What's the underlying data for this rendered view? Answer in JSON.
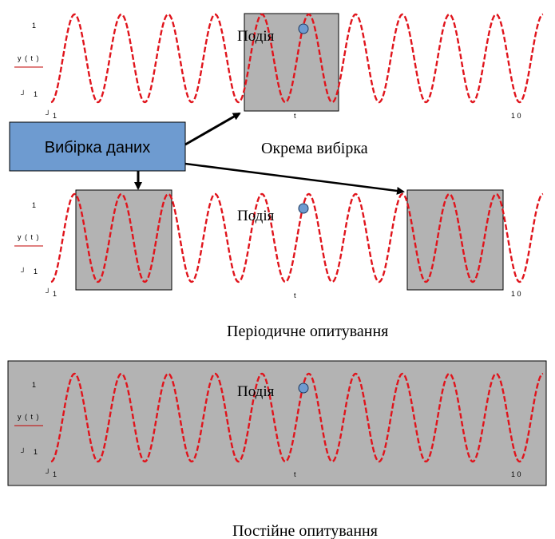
{
  "colors": {
    "wave": "#e0141c",
    "shade": "#b3b3b3",
    "box": "#6e9bd0",
    "event_dot": "#6e9bd0"
  },
  "sampler_box": {
    "label": "Вибірка даних"
  },
  "captions": {
    "single": "Окрема вибірка",
    "periodic": "Періодичне опитування",
    "continuous": "Постійне опитування"
  },
  "plots": [
    {
      "id": "single",
      "ylabel": "y ( t )",
      "y_top": "1",
      "y_bottom": "1",
      "corner": "┘",
      "x_start": "1",
      "x_mid": "t",
      "x_end": "1 0",
      "event": "Подія"
    },
    {
      "id": "periodic",
      "ylabel": "y ( t )",
      "y_top": "1",
      "y_bottom": "1",
      "corner": "┘",
      "x_start": "1",
      "x_mid": "t",
      "x_end": "1 0",
      "event": "Подія"
    },
    {
      "id": "continuous",
      "ylabel": "y ( t )",
      "y_top": "1",
      "y_bottom": "1",
      "corner": "┘",
      "x_start": "1",
      "x_mid": "t",
      "x_end": "1 0",
      "event": "Подія"
    }
  ]
}
